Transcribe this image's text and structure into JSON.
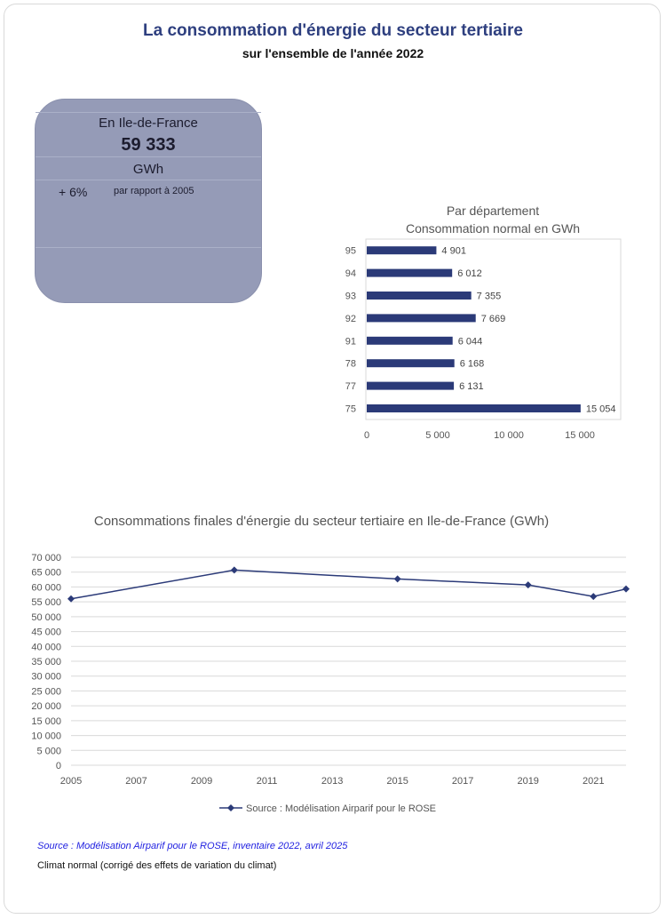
{
  "header": {
    "title": "La consommation d'énergie du secteur tertiaire",
    "subtitle": "sur l'ensemble de l'année 2022"
  },
  "kpi": {
    "region": "En Ile-de-France",
    "value": "59 333",
    "unit": "GWh",
    "change": "+ 6%",
    "reference": "par rapport à 2005"
  },
  "colors": {
    "accent": "#2e3f7f",
    "bar": "#2b3a78",
    "card": "#959bb7"
  },
  "chart_data": [
    {
      "type": "bar",
      "orientation": "horizontal",
      "title": "Par département",
      "subtitle": "Consommation normal en GWh",
      "categories": [
        "95",
        "94",
        "93",
        "92",
        "91",
        "78",
        "77",
        "75"
      ],
      "values": [
        4901,
        6012,
        7355,
        7669,
        6044,
        6168,
        6131,
        15054
      ],
      "value_labels": [
        "4 901",
        "6 012",
        "7 355",
        "7 669",
        "6 044",
        "6 168",
        "6 131",
        "15 054"
      ],
      "xlim": [
        0,
        16000
      ],
      "xticks": [
        0,
        5000,
        10000,
        15000
      ],
      "xtick_labels": [
        "0",
        "5 000",
        "10 000",
        "15 000"
      ]
    },
    {
      "type": "line",
      "title": "Consommations finales d'énergie du secteur tertiaire en Ile-de-France (GWh)",
      "x": [
        2005,
        2010,
        2015,
        2019,
        2021,
        2022
      ],
      "series": [
        {
          "name": "Source : Modélisation Airparif pour le ROSE",
          "values": [
            56000,
            65700,
            62700,
            60700,
            56800,
            59333
          ]
        }
      ],
      "xlim": [
        2005,
        2022
      ],
      "ylim": [
        0,
        70000
      ],
      "xticks": [
        2005,
        2007,
        2009,
        2011,
        2013,
        2015,
        2017,
        2019,
        2021
      ],
      "yticks": [
        0,
        5000,
        10000,
        15000,
        20000,
        25000,
        30000,
        35000,
        40000,
        45000,
        50000,
        55000,
        60000,
        65000,
        70000
      ],
      "ytick_labels": [
        "0",
        "5 000",
        "10 000",
        "15 000",
        "20 000",
        "25 000",
        "30 000",
        "35 000",
        "40 000",
        "45 000",
        "50 000",
        "55 000",
        "60 000",
        "65 000",
        "70 000"
      ],
      "grid": true,
      "legend": "bottom"
    }
  ],
  "footer": {
    "source": "Source : Modélisation Airparif pour le ROSE, inventaire 2022, avril 2025",
    "climate": "Climat normal (corrigé des effets de variation du climat)"
  }
}
